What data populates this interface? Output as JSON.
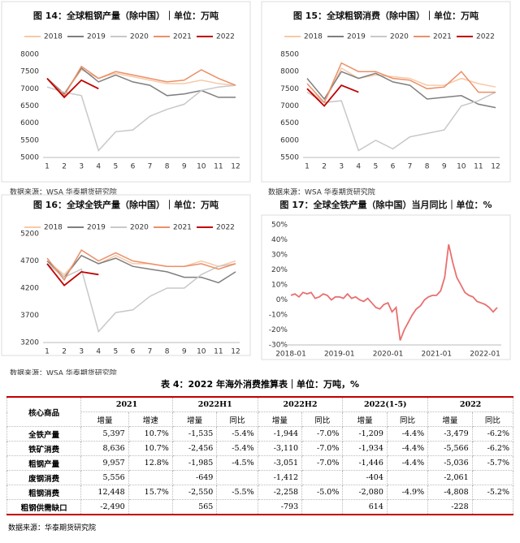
{
  "chart_data": [
    {
      "type": "line",
      "title": "图 14：全球粗钢产量（除中国）｜单位：万吨",
      "source": "数据来源：WSA 华泰期货研究院",
      "categories": [
        "1",
        "2",
        "3",
        "4",
        "5",
        "6",
        "7",
        "8",
        "9",
        "10",
        "11",
        "12"
      ],
      "ylim": [
        5000,
        8000
      ],
      "yticks": [
        5000,
        5500,
        6000,
        6500,
        7000,
        7500,
        8000
      ],
      "grid": false,
      "series": [
        {
          "name": "2018",
          "color": "#f8c9a6",
          "values": [
            7300,
            6850,
            7550,
            7300,
            7450,
            7350,
            7250,
            7150,
            7150,
            7250,
            7150,
            7100
          ]
        },
        {
          "name": "2019",
          "color": "#7f7f7f",
          "values": [
            7300,
            6850,
            7600,
            7200,
            7400,
            7200,
            7100,
            6800,
            6850,
            6950,
            6750,
            6750
          ]
        },
        {
          "name": "2020",
          "color": "#c8c8c8",
          "values": [
            7050,
            6900,
            6800,
            5200,
            5750,
            5800,
            6200,
            6400,
            6550,
            6950,
            7050,
            7100
          ]
        },
        {
          "name": "2021",
          "color": "#eb8f68",
          "values": [
            7300,
            6800,
            7650,
            7300,
            7500,
            7400,
            7300,
            7200,
            7250,
            7550,
            7300,
            7100
          ]
        },
        {
          "name": "2022",
          "color": "#c00000",
          "values": [
            7300,
            6750,
            7250,
            7000,
            null,
            null,
            null,
            null,
            null,
            null,
            null,
            null
          ]
        }
      ]
    },
    {
      "type": "line",
      "title": "图 15：全球粗钢消费（除中国）｜单位：万吨",
      "source": "数据来源：WSA 华泰期货研究院",
      "categories": [
        "1",
        "2",
        "3",
        "4",
        "5",
        "6",
        "7",
        "8",
        "9",
        "10",
        "11",
        "12"
      ],
      "ylim": [
        5500,
        8500
      ],
      "yticks": [
        5500,
        6000,
        6500,
        7000,
        7500,
        8000,
        8500
      ],
      "grid": false,
      "series": [
        {
          "name": "2018",
          "color": "#f8c9a6",
          "values": [
            7500,
            7100,
            8100,
            7800,
            7900,
            7850,
            7800,
            7600,
            7600,
            7800,
            7650,
            7550
          ]
        },
        {
          "name": "2019",
          "color": "#7f7f7f",
          "values": [
            7800,
            7200,
            8000,
            7800,
            7950,
            7700,
            7600,
            7200,
            7250,
            7300,
            7050,
            6950
          ]
        },
        {
          "name": "2020",
          "color": "#c8c8c8",
          "values": [
            7400,
            7100,
            7150,
            5700,
            6000,
            5750,
            6100,
            6200,
            6300,
            7000,
            7150,
            7400
          ]
        },
        {
          "name": "2021",
          "color": "#eb8f68",
          "values": [
            7650,
            7100,
            8250,
            8000,
            8000,
            7800,
            7750,
            7500,
            7550,
            8000,
            7400,
            7400
          ]
        },
        {
          "name": "2022",
          "color": "#c00000",
          "values": [
            7500,
            7000,
            7600,
            7400,
            null,
            null,
            null,
            null,
            null,
            null,
            null,
            null
          ]
        }
      ]
    },
    {
      "type": "line",
      "title": "图 16：全球全铁产量（除中国）｜单位：万吨",
      "source": "数据来源：WSA 华泰期货研究院",
      "categories": [
        "1",
        "2",
        "3",
        "4",
        "5",
        "6",
        "7",
        "8",
        "9",
        "10",
        "11",
        "12"
      ],
      "ylim": [
        3200,
        5200
      ],
      "yticks": [
        3200,
        3700,
        4200,
        4700,
        5200
      ],
      "grid": false,
      "series": [
        {
          "name": "2018",
          "color": "#f8c9a6",
          "values": [
            4700,
            4450,
            4800,
            4650,
            4800,
            4650,
            4650,
            4600,
            4600,
            4700,
            4600,
            4700
          ]
        },
        {
          "name": "2019",
          "color": "#7f7f7f",
          "values": [
            4700,
            4400,
            4800,
            4650,
            4750,
            4600,
            4550,
            4500,
            4400,
            4400,
            4300,
            4500
          ]
        },
        {
          "name": "2020",
          "color": "#c8c8c8",
          "values": [
            4650,
            4400,
            4550,
            3400,
            3750,
            3800,
            4050,
            4200,
            4200,
            4450,
            4600,
            4650
          ]
        },
        {
          "name": "2021",
          "color": "#eb8f68",
          "values": [
            4750,
            4350,
            4900,
            4700,
            4850,
            4700,
            4650,
            4600,
            4600,
            4650,
            4550,
            4650
          ]
        },
        {
          "name": "2022",
          "color": "#c00000",
          "values": [
            4650,
            4250,
            4500,
            4450,
            null,
            null,
            null,
            null,
            null,
            null,
            null,
            null
          ]
        }
      ]
    },
    {
      "type": "line",
      "title": "图 17：全球全铁产量（除中国）当月同比｜单位：%",
      "categories": [
        "2018-01",
        null,
        null,
        null,
        null,
        null,
        null,
        null,
        null,
        null,
        null,
        null,
        "2019-01",
        null,
        null,
        null,
        null,
        null,
        null,
        null,
        null,
        null,
        null,
        null,
        "2020-01",
        null,
        null,
        null,
        null,
        null,
        null,
        null,
        null,
        null,
        null,
        null,
        "2021-01",
        null,
        null,
        null,
        null,
        null,
        null,
        null,
        null,
        null,
        null,
        null,
        "2022-01",
        null,
        null,
        null
      ],
      "ylim": [
        -30,
        50
      ],
      "yticks": [
        {
          "value": -30,
          "label": "-30%"
        },
        {
          "value": -20,
          "label": "-20%"
        },
        {
          "value": -10,
          "label": "-10%"
        },
        {
          "value": 0,
          "label": "0%"
        },
        {
          "value": 10,
          "label": "10%"
        },
        {
          "value": 20,
          "label": "20%"
        },
        {
          "value": 30,
          "label": "30%"
        },
        {
          "value": 40,
          "label": "40%"
        },
        {
          "value": 50,
          "label": "50%"
        }
      ],
      "grid": false,
      "series": [
        {
          "name": null,
          "color": "#e87070",
          "values": [
            3,
            4,
            2,
            5,
            4,
            5,
            1,
            2,
            4,
            3,
            0,
            2,
            2,
            1,
            4,
            1,
            2,
            0,
            -1,
            1,
            -2,
            -5,
            -6,
            -3,
            -2,
            -8,
            -5,
            -27,
            -20,
            -15,
            -10,
            -6,
            -4,
            0,
            2,
            3,
            3,
            6,
            15,
            37,
            25,
            15,
            10,
            5,
            3,
            2,
            -1,
            -2,
            -3,
            -5,
            -8,
            -5
          ]
        }
      ]
    }
  ],
  "table": {
    "title": "表 4：2022 年海外消费推算表｜单位：万吨，%",
    "corner": "核心商品",
    "groups": [
      "2021",
      "2022H1",
      "2022H2",
      "2022(1-5)",
      "2022"
    ],
    "subheaders": [
      "增量",
      "增速",
      "增量",
      "同比",
      "增量",
      "同比",
      "增量",
      "同比",
      "增量",
      "同比"
    ],
    "rows": [
      [
        "全铁产量",
        "5,397",
        "10.7%",
        "-1,535",
        "-5.4%",
        "-1,944",
        "-7.0%",
        "-1,209",
        "-4.4%",
        "-3,479",
        "-6.2%"
      ],
      [
        "铁矿消费",
        "8,636",
        "10.7%",
        "-2,456",
        "-5.4%",
        "-3,110",
        "-7.0%",
        "-1,934",
        "-4.4%",
        "-5,566",
        "-6.2%"
      ],
      [
        "粗钢产量",
        "9,957",
        "12.8%",
        "-1,985",
        "-4.5%",
        "-3,051",
        "-7.0%",
        "-1,446",
        "-4.4%",
        "-5,036",
        "-5.7%"
      ],
      [
        "废钢消费",
        "5,556",
        null,
        "-649",
        null,
        "-1,412",
        null,
        "-404",
        null,
        "-2,061",
        null
      ],
      [
        "粗钢消费",
        "12,448",
        "15.7%",
        "-2,550",
        "-5.5%",
        "-2,258",
        "-5.0%",
        "-2,080",
        "-4.9%",
        "-4,808",
        "-5.2%"
      ],
      [
        "粗钢供需缺口",
        "-2,490",
        null,
        "565",
        null,
        "-793",
        null,
        "614",
        null,
        "-228",
        null
      ]
    ],
    "source": "数据来源：华泰期货研究院"
  }
}
